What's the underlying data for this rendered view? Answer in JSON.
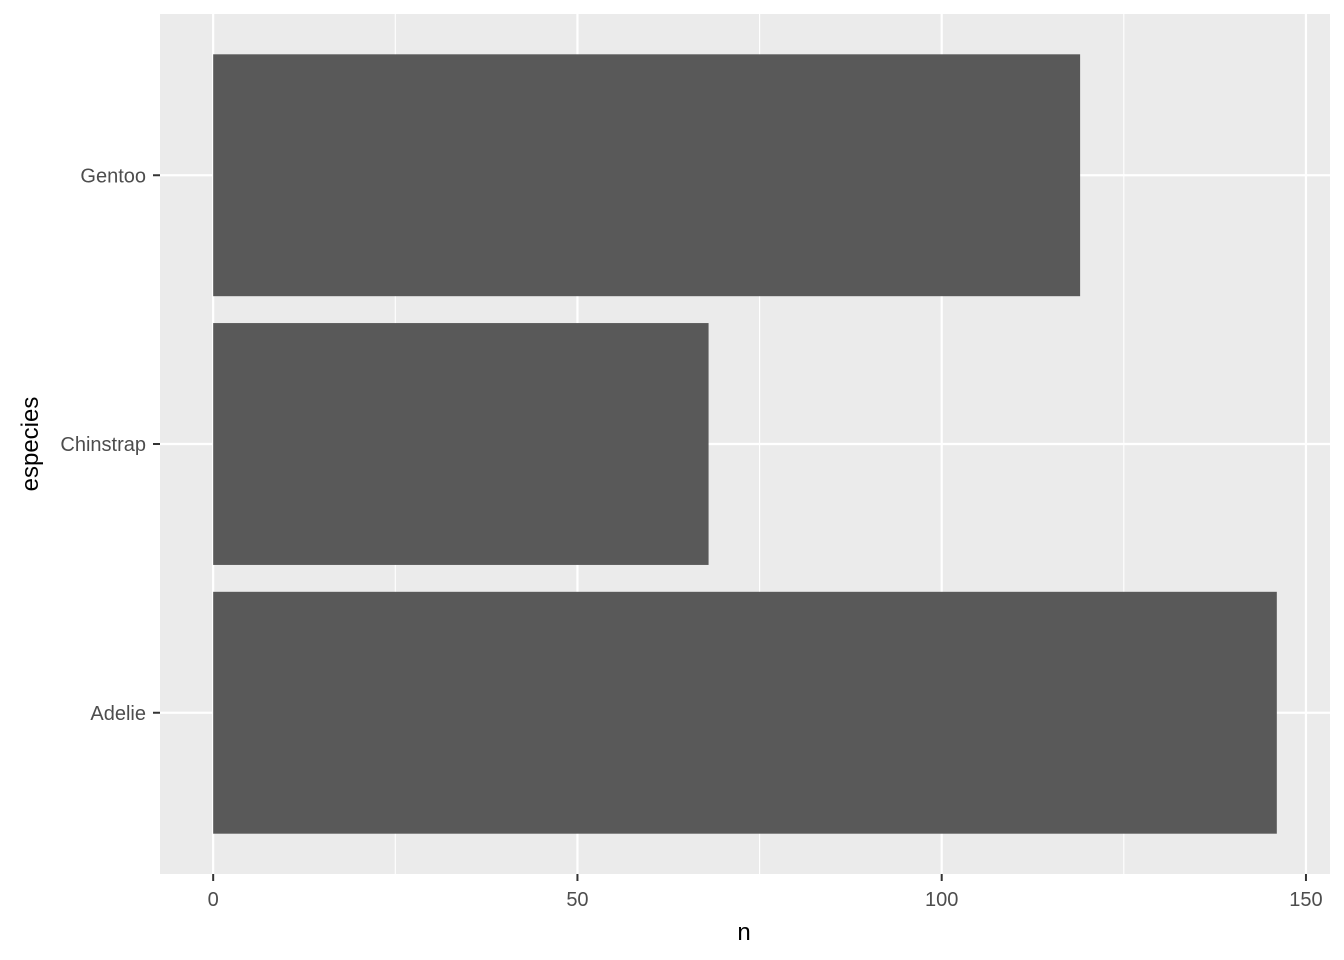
{
  "chart_data": {
    "type": "bar",
    "orientation": "horizontal",
    "categories": [
      "Adelie",
      "Chinstrap",
      "Gentoo"
    ],
    "values": [
      146,
      68,
      119
    ],
    "xlabel": "n",
    "ylabel": "especies",
    "xlim": [
      -7.3,
      153.3
    ],
    "x_ticks": [
      0,
      50,
      100,
      150
    ],
    "x_minor_ticks": [
      25,
      75,
      125
    ],
    "grid": true,
    "legend": "none",
    "colors": {
      "panel_background": "#ebebeb",
      "grid_major": "#ffffff",
      "bar_fill": "#595959",
      "tick_mark": "#333333",
      "tick_text": "#4d4d4d",
      "axis_title": "#000000"
    }
  }
}
